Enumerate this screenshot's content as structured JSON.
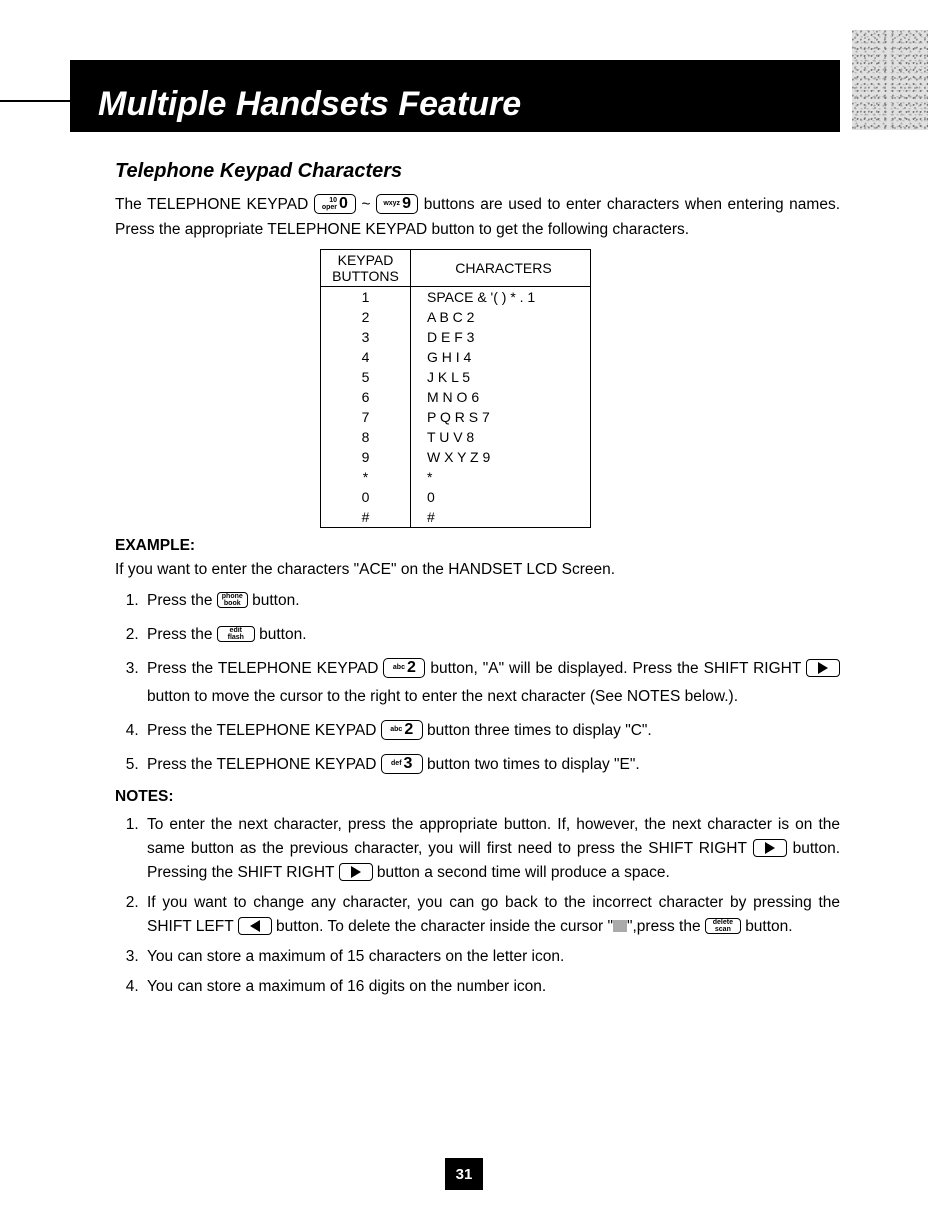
{
  "banner_title": "Multiple Handsets Feature",
  "section_title": "Telephone Keypad Characters",
  "intro": {
    "pre": "The TELEPHONE KEYPAD ",
    "btn0_sub_top": "10",
    "btn0_sub_bot": "oper",
    "btn0_num": "0",
    "tilde": " ~ ",
    "btn9_sub": "wxyz",
    "btn9_num": "9",
    "post": " buttons are used to enter characters when entering names. Press the appropriate TELEPHONE KEYPAD button to get the following characters."
  },
  "table": {
    "head_col1": "KEYPAD BUTTONS",
    "head_col2": "CHARACTERS",
    "rows": [
      {
        "btn": "1",
        "chars": "SPACE & '( ) * . 1"
      },
      {
        "btn": "2",
        "chars": "A B C 2"
      },
      {
        "btn": "3",
        "chars": "D E F 3"
      },
      {
        "btn": "4",
        "chars": "G H I 4"
      },
      {
        "btn": "5",
        "chars": "J K L 5"
      },
      {
        "btn": "6",
        "chars": "M N O 6"
      },
      {
        "btn": "7",
        "chars": "P Q R S 7"
      },
      {
        "btn": "8",
        "chars": "T U V 8"
      },
      {
        "btn": "9",
        "chars": "W X Y Z 9"
      },
      {
        "btn": "*",
        "chars": "*"
      },
      {
        "btn": "0",
        "chars": "0"
      },
      {
        "btn": "#",
        "chars": "#"
      }
    ]
  },
  "example_label": "EXAMPLE:",
  "example_intro": "If you want to enter the characters \"ACE\" on the HANDSET LCD Screen.",
  "steps": {
    "s1_pre": "Press the ",
    "phonebook_top": "phone",
    "phonebook_bot": "book",
    "s1_post": " button.",
    "s2_pre": "Press the ",
    "editflash_top": "edit",
    "editflash_bot": "flash",
    "s2_post": " button.",
    "s3_pre": "Press the TELEPHONE KEYPAD ",
    "abc2_sub": "abc",
    "abc2_num": "2",
    "s3_mid": " button, \"A\" will be displayed. Press the SHIFT RIGHT ",
    "s3_post": " button to move the cursor to the right to enter the next character (See NOTES below.).",
    "s4_pre": "Press the TELEPHONE KEYPAD ",
    "s4_post": " button three times to display \"C\".",
    "s5_pre": "Press the TELEPHONE KEYPAD ",
    "def3_sub": "def",
    "def3_num": "3",
    "s5_post": " button two times to display \"E\"."
  },
  "notes_label": "NOTES:",
  "notes": {
    "n1_pre": "To enter the next character, press the appropriate button. If, however, the next character is on the same button as the previous character, you will first need to press the SHIFT RIGHT ",
    "n1_mid": " button. Pressing the SHIFT RIGHT ",
    "n1_post": " button a second time will produce a space.",
    "n2_pre": "If you want to change any character, you can go back to the incorrect character by pressing the SHIFT LEFT ",
    "n2_mid": " button. To delete the character inside the cursor \"",
    "n2_mid2": "\",press the ",
    "deletescan_top": "delete",
    "deletescan_bot": "scan",
    "n2_post": " button.",
    "n3": "You can store a maximum of 15 characters on the letter icon.",
    "n4": "You can store a maximum of 16 digits on the number icon."
  },
  "page_number": "31",
  "colors": {
    "background": "#ffffff",
    "banner_bg": "#000000",
    "banner_text": "#ffffff",
    "text": "#000000",
    "cursor_box": "#aaaaaa"
  }
}
